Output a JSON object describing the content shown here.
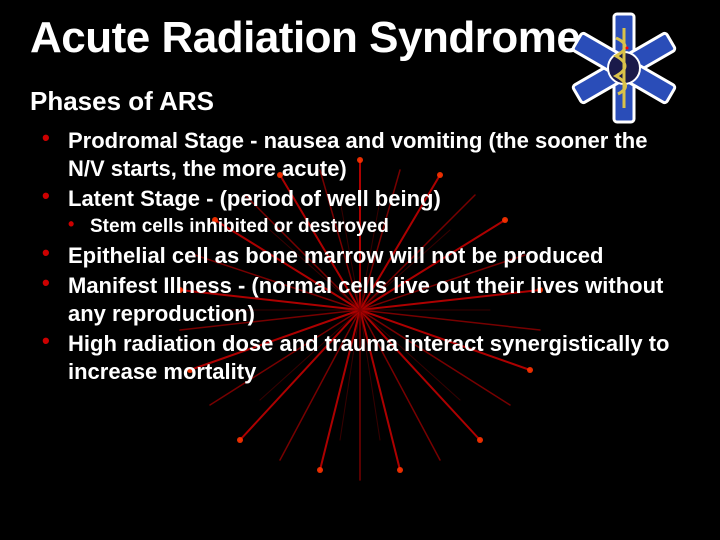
{
  "slide": {
    "title": "Acute Radiation Syndrome",
    "subtitle": "Phases of ARS",
    "title_fontsize": 44,
    "subtitle_fontsize": 26,
    "bullet_fontsize_l1": 22,
    "bullet_fontsize_l2": 19,
    "bullets": [
      {
        "text": "Prodromal Stage - nausea and vomiting (the sooner the N/V starts, the more acute)"
      },
      {
        "text": "Latent Stage - (period of well being)",
        "children": [
          {
            "text": "Stem cells inhibited or destroyed"
          }
        ]
      },
      {
        "text": "Epithelial cell as bone marrow will not be produced"
      },
      {
        "text": "Manifest Illness - (normal cells live out their lives without any reproduction)"
      },
      {
        "text": "High radiation dose and trauma interact synergistically to increase mortality"
      }
    ]
  },
  "style": {
    "background_color": "#000000",
    "text_color": "#ffffff",
    "bullet_color": "#cc0000",
    "firework_colors": [
      "#cc0000",
      "#ff3300",
      "#aa0000",
      "#660000"
    ],
    "logo_star_color": "#2a4db8",
    "logo_outline": "#ffffff",
    "logo_snake_color": "#d9c24a",
    "logo_center_color": "#1a1a4a"
  }
}
